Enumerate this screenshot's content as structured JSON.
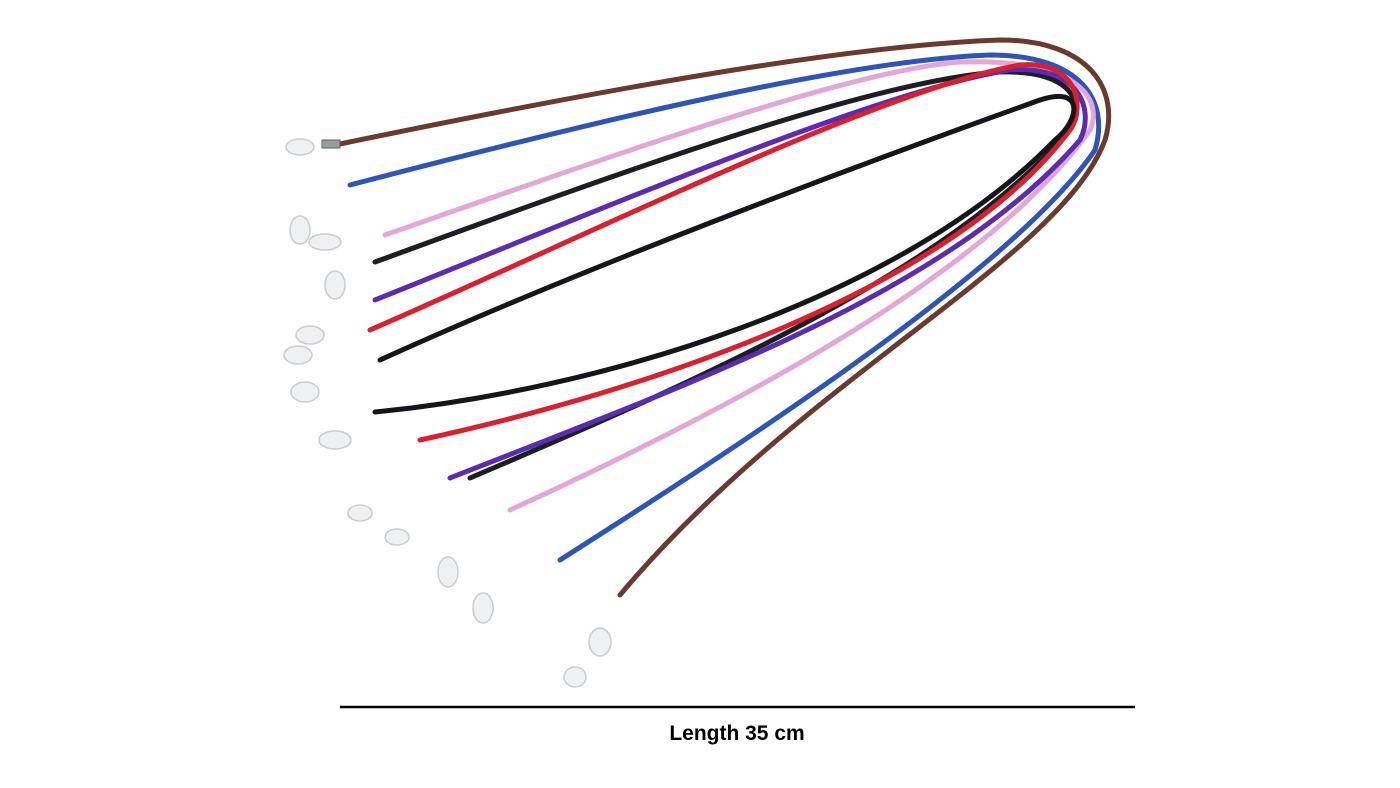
{
  "caption": "Length 35 cm"
}
